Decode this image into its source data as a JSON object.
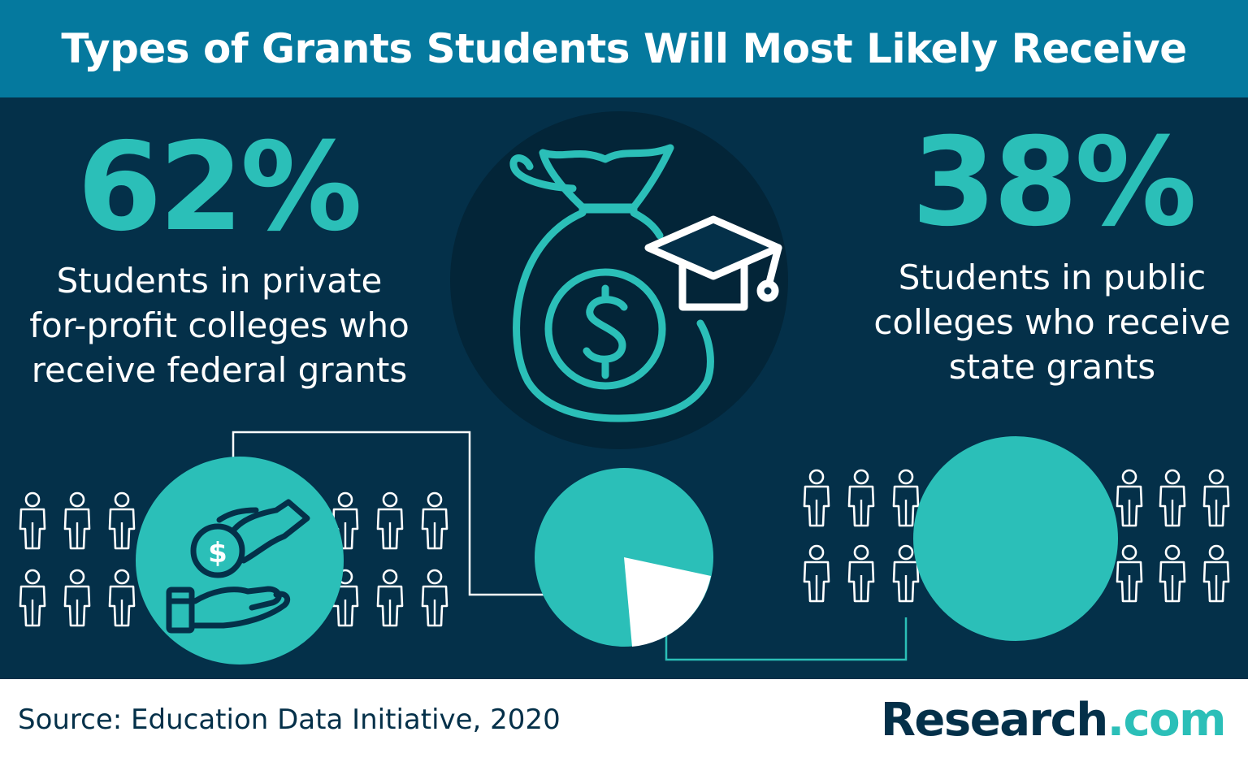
{
  "header": {
    "title": "Types of Grants Students Will Most Likely Receive"
  },
  "left_stat": {
    "value": "62%",
    "lines": [
      "Students in private",
      "for-profit colleges who",
      "receive federal grants"
    ]
  },
  "right_stat": {
    "value": "38%",
    "lines": [
      "Students in public",
      "colleges who receive",
      "state grants"
    ]
  },
  "footer": {
    "source": "Source: Education Data Initiative, 2020",
    "brand_name": "Research",
    "brand_suffix": ".com"
  },
  "icons": [
    "money-bag-icon",
    "graduation-cap-icon",
    "dollar-icon",
    "hand-giving-coin-icon",
    "person-icon"
  ],
  "colors": {
    "header": "#05799e",
    "background": "#043049",
    "accent": "#2bbfb8",
    "text": "#ffffff"
  }
}
